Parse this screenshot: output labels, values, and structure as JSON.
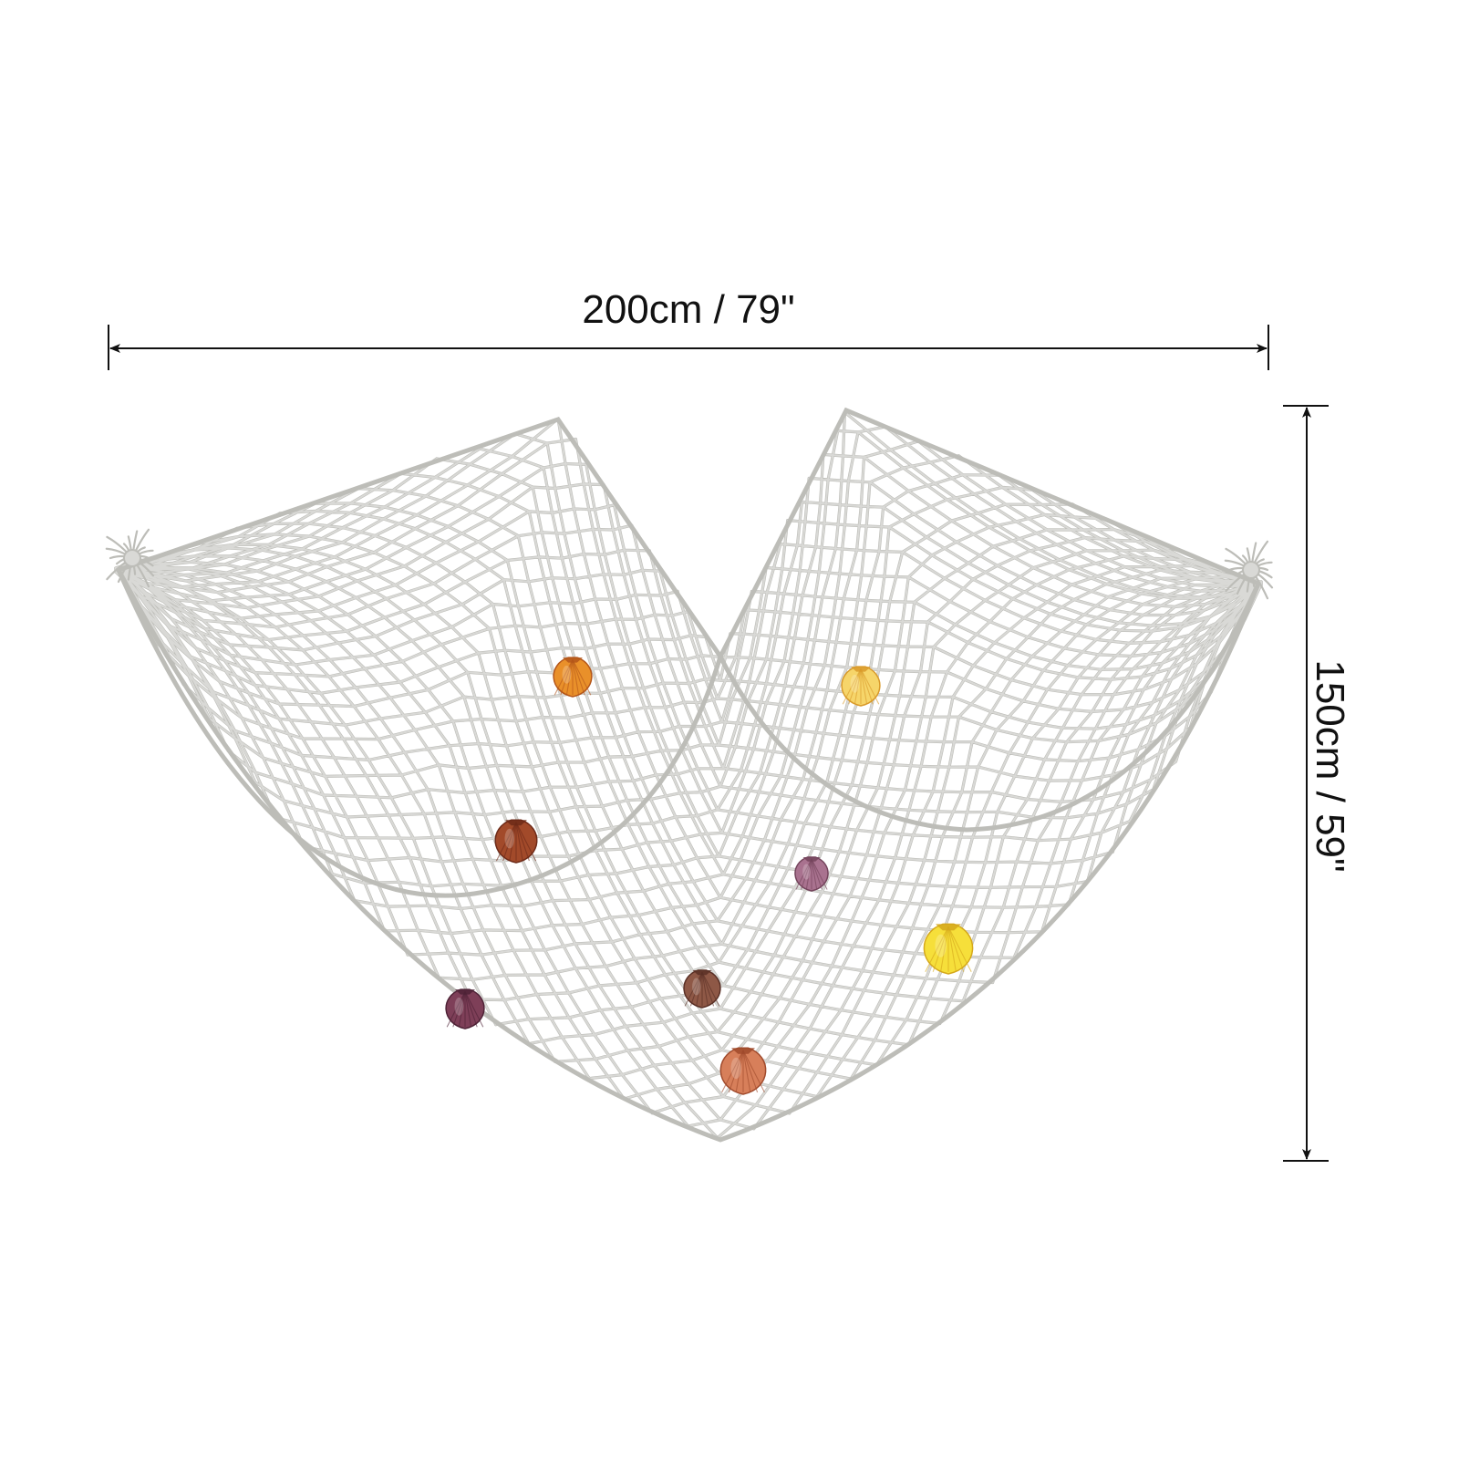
{
  "dimensions": {
    "width_label": "200cm / 79\"",
    "height_label": "150cm / 59\""
  },
  "colors": {
    "background": "#ffffff",
    "dimension_line": "#111111",
    "net_rope": "#d9d9d6",
    "net_rope_shadow": "#bdbdb8"
  },
  "shells": [
    {
      "name": "orange-scallop",
      "color": "#e9902a",
      "edge": "#b4561a"
    },
    {
      "name": "light-yellow-scallop",
      "color": "#f6d56a",
      "edge": "#d99a2a"
    },
    {
      "name": "rust-scallop",
      "color": "#a24a2a",
      "edge": "#6d2a18"
    },
    {
      "name": "mauve-scallop",
      "color": "#a9728f",
      "edge": "#74445c"
    },
    {
      "name": "bright-yellow-scallop",
      "color": "#f6df3a",
      "edge": "#d5a81c"
    },
    {
      "name": "brown-scallop",
      "color": "#8e5846",
      "edge": "#5a3026"
    },
    {
      "name": "plum-scallop",
      "color": "#7e3f58",
      "edge": "#4e2236"
    },
    {
      "name": "peach-scallop",
      "color": "#d77f5a",
      "edge": "#a04a2c"
    }
  ]
}
